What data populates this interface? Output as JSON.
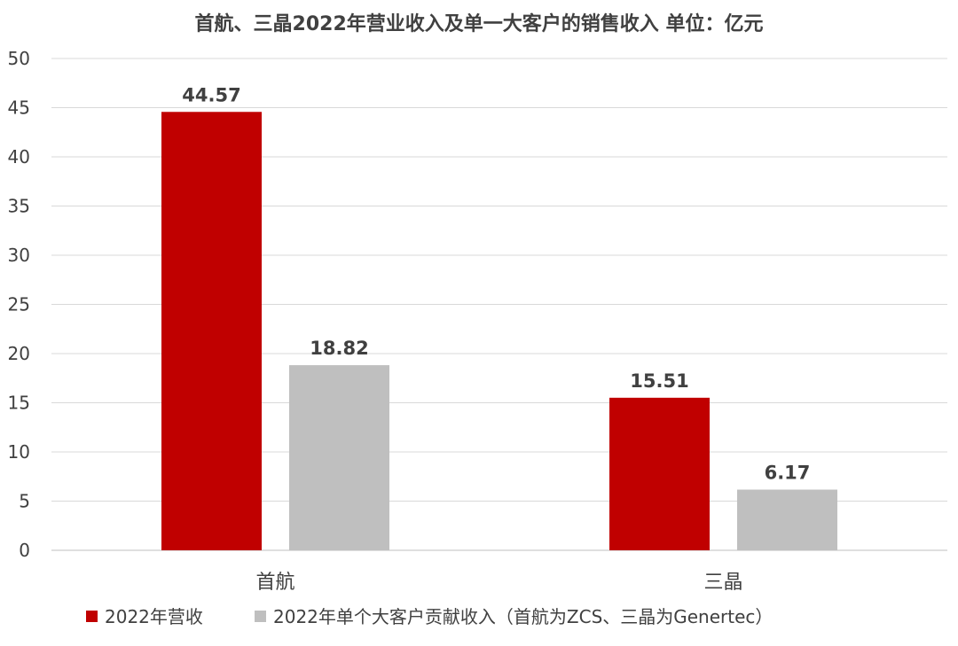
{
  "chart_data": {
    "type": "bar",
    "title": "首航、三晶2022年营业收入及单一大客户的销售收入 单位：亿元",
    "categories": [
      "首航",
      "三晶"
    ],
    "series": [
      {
        "name": "2022年营收",
        "values": [
          44.57,
          15.51
        ],
        "color": "#c00000"
      },
      {
        "name": "2022年单个大客户贡献收入（首航为ZCS、三晶为Genertec）",
        "values": [
          18.82,
          6.17
        ],
        "color": "#bfbfbf"
      }
    ],
    "yticks": [
      "0",
      "5",
      "10",
      "15",
      "20",
      "25",
      "30",
      "35",
      "40",
      "45",
      "50"
    ],
    "ylim": [
      0,
      50
    ],
    "grid": true,
    "legend_position": "bottom",
    "data_labels": [
      [
        "44.57",
        "15.51"
      ],
      [
        "18.82",
        "6.17"
      ]
    ]
  }
}
